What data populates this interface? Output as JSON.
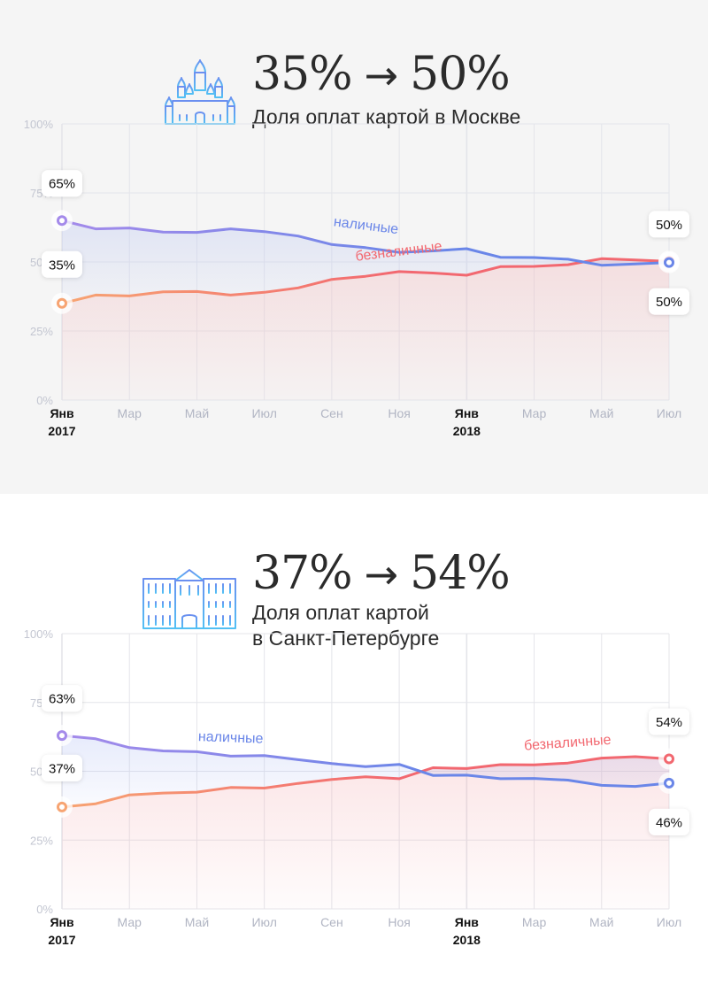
{
  "palette": {
    "cash": "#6a86e8",
    "cash_start": "#a48aea",
    "card": "#f26870",
    "card_start": "#f7a472",
    "grid": "#e4e5ea",
    "axis_text": "#c3c6d1",
    "icon_blue": "#58b4f2"
  },
  "chart_data": [
    {
      "type": "line",
      "headline": {
        "from": "35%",
        "arrow": "→",
        "to": "50%"
      },
      "title": "Доля оплат картой в Москве",
      "icon": "st-basils-cathedral-icon",
      "y_ticks": [
        "100%",
        "75%",
        "50%",
        "25%",
        "0%"
      ],
      "ylim": [
        0,
        100
      ],
      "grid": true,
      "x_ticks": [
        {
          "i": 0,
          "label": "Янв",
          "year": "2017",
          "major": true
        },
        {
          "i": 2,
          "label": "Мар"
        },
        {
          "i": 4,
          "label": "Май"
        },
        {
          "i": 6,
          "label": "Июл"
        },
        {
          "i": 8,
          "label": "Сен"
        },
        {
          "i": 10,
          "label": "Ноя"
        },
        {
          "i": 12,
          "label": "Янв",
          "year": "2018",
          "major": true
        },
        {
          "i": 14,
          "label": "Мар"
        },
        {
          "i": 16,
          "label": "Май"
        },
        {
          "i": 18,
          "label": "Июл"
        }
      ],
      "series": [
        {
          "name": "наличные",
          "key": "cash",
          "values": [
            65,
            62,
            62.3,
            60.8,
            60.7,
            62,
            61,
            59.4,
            56.3,
            55.2,
            53.5,
            54,
            54.8,
            51.7,
            51.6,
            51,
            48.8,
            49.3,
            49.8
          ],
          "label_pos": {
            "i": 9,
            "dy": -20,
            "rot": 7
          },
          "start_label": "65%",
          "end_label": "50%"
        },
        {
          "name": "безналичные",
          "key": "card",
          "values": [
            35,
            38,
            37.7,
            39.2,
            39.3,
            38,
            39,
            40.6,
            43.7,
            44.8,
            46.5,
            46,
            45.2,
            48.3,
            48.4,
            49,
            51.2,
            50.7,
            50.2
          ],
          "label_pos": {
            "i": 10,
            "dy": -18,
            "rot": -7
          },
          "start_label": "35%",
          "end_label": "50%"
        }
      ]
    },
    {
      "type": "line",
      "headline": {
        "from": "37%",
        "arrow": "→",
        "to": "54%"
      },
      "title": "Доля оплат картой в Санкт-Петербурге",
      "title_lines": [
        "Доля оплат картой",
        "в Санкт-Петербурге"
      ],
      "icon": "winter-palace-icon",
      "y_ticks": [
        "100%",
        "75%",
        "50%",
        "25%",
        "0%"
      ],
      "ylim": [
        0,
        100
      ],
      "grid": true,
      "x_ticks": [
        {
          "i": 0,
          "label": "Янв",
          "year": "2017",
          "major": true
        },
        {
          "i": 2,
          "label": "Мар"
        },
        {
          "i": 4,
          "label": "Май"
        },
        {
          "i": 6,
          "label": "Июл"
        },
        {
          "i": 8,
          "label": "Сен"
        },
        {
          "i": 10,
          "label": "Ноя"
        },
        {
          "i": 12,
          "label": "Янв",
          "year": "2018",
          "major": true
        },
        {
          "i": 14,
          "label": "Мар"
        },
        {
          "i": 16,
          "label": "Май"
        },
        {
          "i": 18,
          "label": "Июл"
        }
      ],
      "series": [
        {
          "name": "наличные",
          "key": "cash",
          "values": [
            63,
            61.8,
            58.6,
            57.4,
            57.1,
            55.5,
            55.7,
            54.2,
            52.8,
            51.7,
            52.5,
            48.5,
            48.6,
            47.3,
            47.4,
            46.8,
            44.9,
            44.5,
            45.7
          ],
          "label_pos": {
            "i": 5,
            "dy": -16,
            "rot": 2
          },
          "start_label": "63%",
          "end_label": "46%"
        },
        {
          "name": "безналичные",
          "key": "card",
          "values": [
            37,
            38.2,
            41.4,
            42.1,
            42.4,
            44.1,
            43.9,
            45.6,
            47.0,
            48.0,
            47.3,
            51.3,
            51.0,
            52.4,
            52.3,
            53.0,
            54.8,
            55.3,
            54.5
          ],
          "label_pos": {
            "i": 15,
            "dy": -18,
            "rot": -4
          },
          "start_label": "37%",
          "end_label": "54%"
        }
      ]
    }
  ]
}
